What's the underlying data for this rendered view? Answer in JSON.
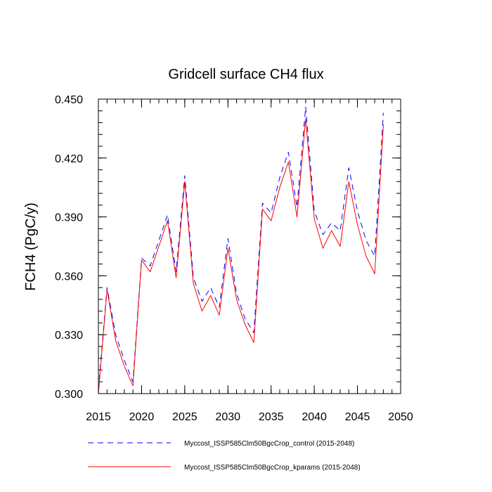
{
  "chart_data": {
    "type": "line",
    "title": "Gridcell surface CH4 flux",
    "xlabel": "",
    "ylabel": "FCH4  (PgC/y)",
    "xlim": [
      2015,
      2050
    ],
    "ylim": [
      0.3,
      0.45
    ],
    "x_ticks": [
      2015,
      2020,
      2025,
      2030,
      2035,
      2040,
      2045,
      2050
    ],
    "x_tick_labels": [
      "2015",
      "2020",
      "2025",
      "2030",
      "2035",
      "2040",
      "2045",
      "2050"
    ],
    "x_minor_step": 1,
    "y_ticks": [
      0.3,
      0.33,
      0.36,
      0.39,
      0.42,
      0.45
    ],
    "y_tick_labels": [
      "0.300",
      "0.330",
      "0.360",
      "0.390",
      "0.420",
      "0.450"
    ],
    "y_minor_step": 0.006,
    "x": [
      2015,
      2016,
      2017,
      2018,
      2019,
      2020,
      2021,
      2022,
      2023,
      2024,
      2025,
      2026,
      2027,
      2028,
      2029,
      2030,
      2031,
      2032,
      2033,
      2034,
      2035,
      2036,
      2037,
      2038,
      2039,
      2040,
      2041,
      2042,
      2043,
      2044,
      2045,
      2046,
      2047,
      2048
    ],
    "series": [
      {
        "name": "Myccost_ISSP585Clm50BgcCrop_control (2015-2048)",
        "color": "#0000ff",
        "dash": "dashed",
        "values": [
          0.302,
          0.354,
          0.33,
          0.317,
          0.306,
          0.369,
          0.365,
          0.378,
          0.391,
          0.362,
          0.411,
          0.359,
          0.347,
          0.354,
          0.344,
          0.379,
          0.351,
          0.338,
          0.331,
          0.397,
          0.392,
          0.41,
          0.423,
          0.395,
          0.446,
          0.393,
          0.381,
          0.387,
          0.383,
          0.415,
          0.393,
          0.378,
          0.37,
          0.443
        ]
      },
      {
        "name": "Myccost_ISSP585Clm50BgcCrop_kparams (2015-2048)",
        "color": "#ff0000",
        "dash": "solid",
        "values": [
          0.3,
          0.353,
          0.327,
          0.314,
          0.304,
          0.368,
          0.362,
          0.375,
          0.388,
          0.359,
          0.408,
          0.356,
          0.342,
          0.35,
          0.34,
          0.374,
          0.348,
          0.335,
          0.326,
          0.394,
          0.388,
          0.405,
          0.418,
          0.39,
          0.44,
          0.389,
          0.374,
          0.383,
          0.375,
          0.408,
          0.386,
          0.37,
          0.361,
          0.437
        ]
      }
    ],
    "legend_position": "bottom"
  }
}
